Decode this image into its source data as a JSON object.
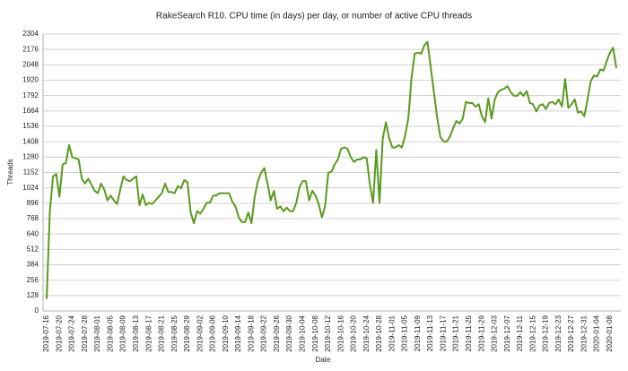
{
  "chart_data": {
    "type": "line",
    "title": "RakeSearch R10. CPU time (in days) per day, or number of active CPU threads",
    "x_label": "Date",
    "y_label": "Threads",
    "categories": [
      "2019-07-16",
      null,
      null,
      null,
      "2019-07-20",
      null,
      null,
      null,
      "2019-07-24",
      null,
      null,
      null,
      "2019-07-28",
      null,
      null,
      null,
      "2019-08-01",
      null,
      null,
      null,
      "2019-08-05",
      null,
      null,
      null,
      "2019-08-09",
      null,
      null,
      null,
      "2019-08-13",
      null,
      null,
      null,
      "2019-08-17",
      null,
      null,
      null,
      "2019-08-21",
      null,
      null,
      null,
      "2019-08-25",
      null,
      null,
      null,
      "2019-08-29",
      null,
      null,
      null,
      "2019-09-02",
      null,
      null,
      null,
      "2019-09-06",
      null,
      null,
      null,
      "2019-09-10",
      null,
      null,
      null,
      "2019-09-14",
      null,
      null,
      null,
      "2019-09-18",
      null,
      null,
      null,
      "2019-09-22",
      null,
      null,
      null,
      "2019-09-26",
      null,
      null,
      null,
      "2019-09-30",
      null,
      null,
      null,
      "2019-10-04",
      null,
      null,
      null,
      "2019-10-08",
      null,
      null,
      null,
      "2019-10-12",
      null,
      null,
      null,
      "2019-10-16",
      null,
      null,
      null,
      "2019-10-20",
      null,
      null,
      null,
      "2019-10-24",
      null,
      null,
      null,
      "2019-10-28",
      null,
      null,
      null,
      "2019-11-01",
      null,
      null,
      null,
      "2019-11-05",
      null,
      null,
      null,
      "2019-11-09",
      null,
      null,
      null,
      "2019-11-13",
      null,
      null,
      null,
      "2019-11-17",
      null,
      null,
      null,
      "2019-11-21",
      null,
      null,
      null,
      "2019-11-25",
      null,
      null,
      null,
      "2019-11-29",
      null,
      null,
      null,
      "2019-12-03",
      null,
      null,
      null,
      "2019-12-07",
      null,
      null,
      null,
      "2019-12-11",
      null,
      null,
      null,
      "2019-12-15",
      null,
      null,
      null,
      "2019-12-19",
      null,
      null,
      null,
      "2019-12-23",
      null,
      null,
      null,
      "2019-12-27",
      null,
      null,
      null,
      "2019-12-31",
      null,
      null,
      null,
      "2020-01-04",
      null,
      null,
      null,
      "2020-01-08",
      null,
      null
    ],
    "series": [
      {
        "name": "Threads",
        "color": "#5a9a1e",
        "values": [
          100,
          830,
          1120,
          1140,
          950,
          1220,
          1230,
          1380,
          1280,
          1270,
          1260,
          1100,
          1060,
          1100,
          1050,
          1000,
          980,
          1060,
          1010,
          920,
          960,
          920,
          890,
          1010,
          1120,
          1090,
          1080,
          1100,
          1120,
          880,
          970,
          880,
          900,
          890,
          920,
          950,
          980,
          1060,
          990,
          990,
          980,
          1040,
          1020,
          1090,
          1070,
          820,
          730,
          830,
          810,
          850,
          900,
          900,
          960,
          960,
          980,
          980,
          980,
          980,
          910,
          870,
          780,
          740,
          740,
          820,
          730,
          950,
          1080,
          1150,
          1190,
          1060,
          920,
          1000,
          850,
          870,
          830,
          860,
          830,
          830,
          900,
          1030,
          1080,
          1080,
          920,
          1000,
          960,
          890,
          780,
          870,
          1150,
          1160,
          1220,
          1260,
          1350,
          1360,
          1350,
          1280,
          1240,
          1260,
          1260,
          1280,
          1270,
          1050,
          900,
          1340,
          900,
          1430,
          1570,
          1440,
          1360,
          1360,
          1380,
          1360,
          1460,
          1600,
          1940,
          2140,
          2150,
          2140,
          2210,
          2240,
          2030,
          1820,
          1610,
          1450,
          1410,
          1410,
          1450,
          1520,
          1580,
          1560,
          1600,
          1740,
          1730,
          1730,
          1700,
          1720,
          1620,
          1570,
          1770,
          1600,
          1760,
          1820,
          1840,
          1850,
          1870,
          1820,
          1790,
          1790,
          1820,
          1790,
          1830,
          1730,
          1720,
          1660,
          1710,
          1720,
          1680,
          1730,
          1740,
          1720,
          1760,
          1700,
          1930,
          1690,
          1720,
          1760,
          1650,
          1660,
          1620,
          1760,
          1910,
          1960,
          1950,
          2010,
          2000,
          2080,
          2150,
          2190,
          2020
        ]
      }
    ],
    "ylim": [
      0,
      2304
    ],
    "yticks": [
      0,
      128,
      256,
      384,
      512,
      640,
      768,
      896,
      1024,
      1152,
      1280,
      1408,
      1536,
      1664,
      1792,
      1920,
      2048,
      2176,
      2304
    ],
    "grid": true
  }
}
